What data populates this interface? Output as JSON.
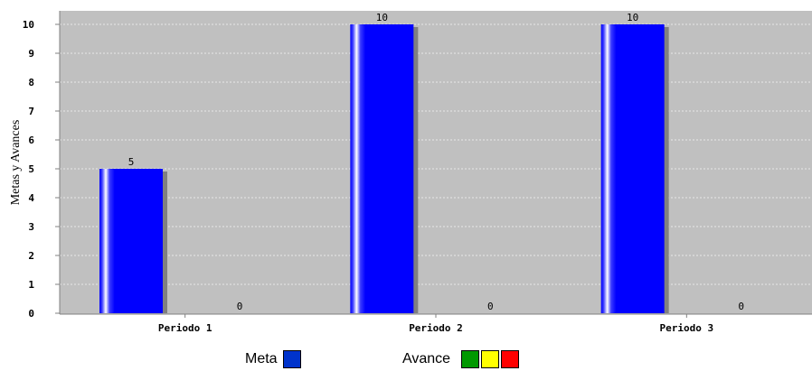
{
  "chart_data": {
    "type": "bar",
    "ylabel": "Metas y Avances",
    "categories": [
      "Periodo 1",
      "Periodo 2",
      "Periodo 3"
    ],
    "ylim": [
      0,
      10.5
    ],
    "yticks": [
      0,
      1,
      2,
      3,
      4,
      5,
      6,
      7,
      8,
      9,
      10
    ],
    "grid": true,
    "series": [
      {
        "name": "Meta",
        "values": [
          5,
          10,
          10
        ],
        "labels": [
          "5",
          "10",
          "10"
        ],
        "color": "#0000ff"
      },
      {
        "name": "Avance",
        "values": [
          0,
          0,
          0
        ],
        "labels": [
          "0",
          "0",
          "0"
        ],
        "color": "#009900"
      }
    ]
  },
  "legend": {
    "meta_label": "Meta",
    "meta_color": "#0033cc",
    "avance_label": "Avance",
    "avance_colors": [
      "#009900",
      "#ffff00",
      "#ff0000"
    ]
  },
  "colors": {
    "plot_background": "#c0c0c0",
    "bar_shadow": "#808080"
  }
}
